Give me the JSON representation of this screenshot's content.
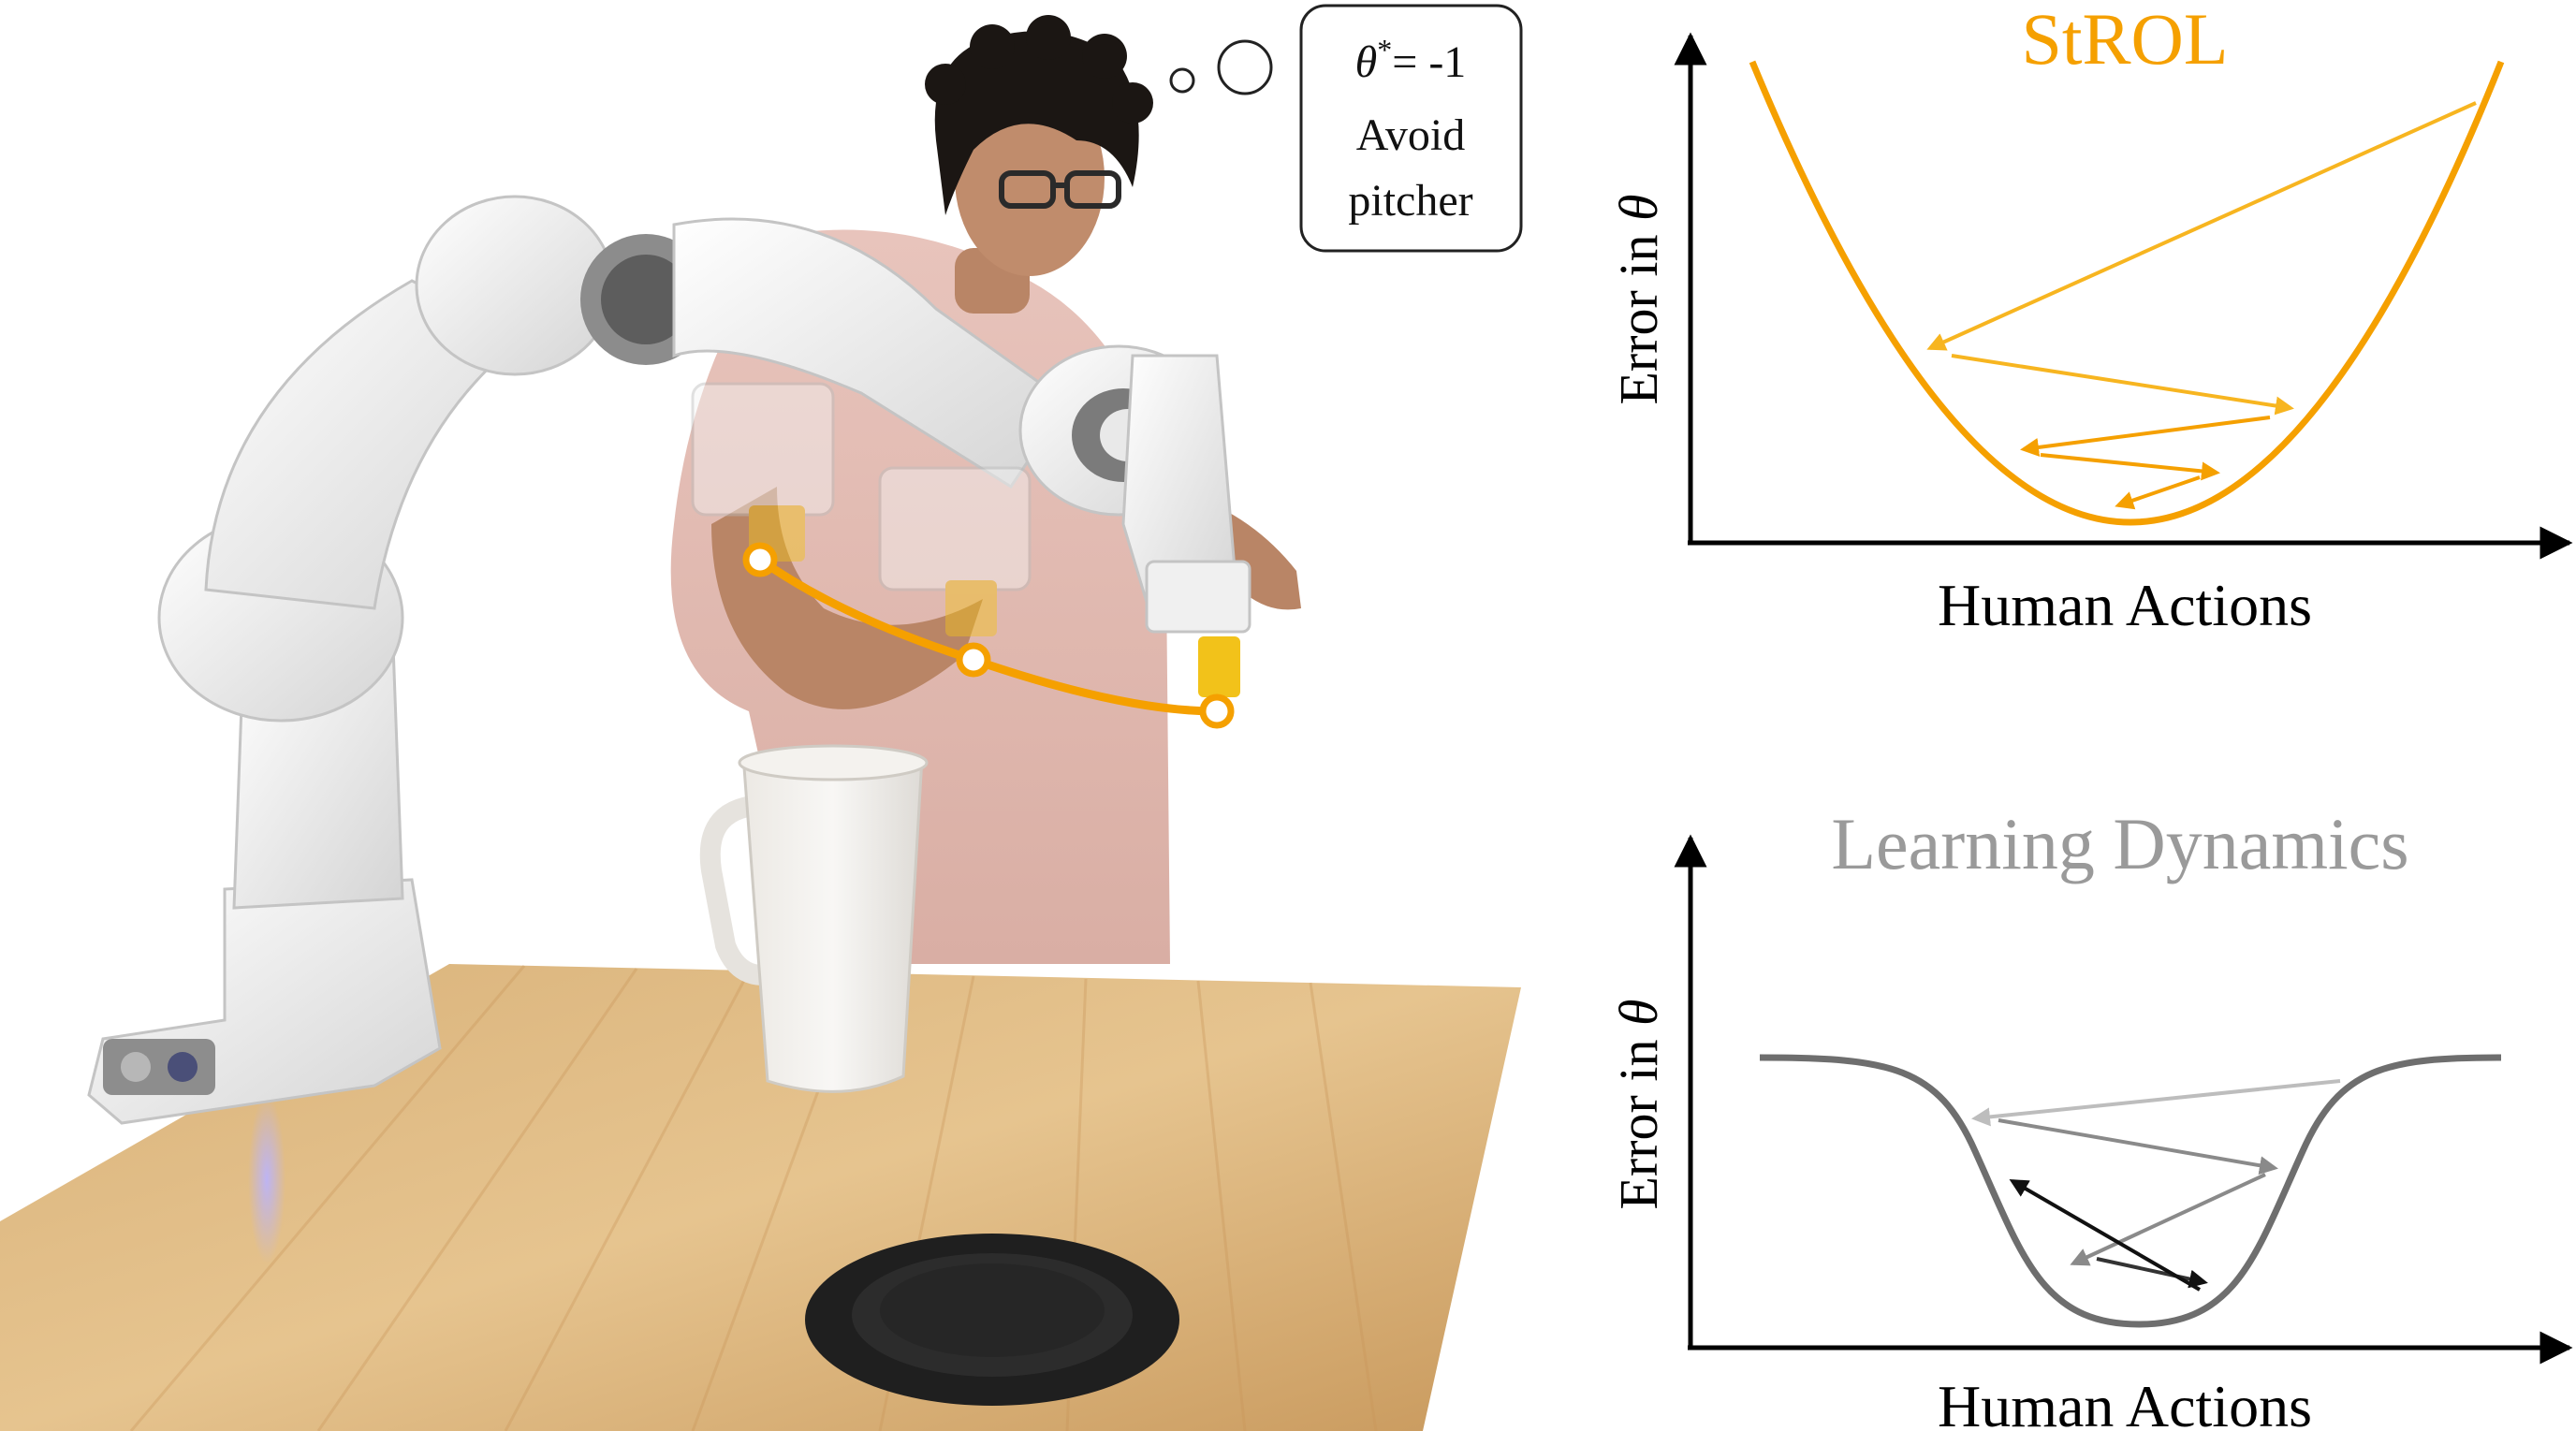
{
  "thought_bubble": {
    "line1_symbol": "θ",
    "line1_sup": "*",
    "line1_value": "= -1",
    "line2": "Avoid",
    "line3": "pitcher"
  },
  "panels": [
    {
      "title": "StROL",
      "ylabel_text": "Error in ",
      "ylabel_symbol": "θ",
      "xlabel": "Human Actions",
      "curve_color": "#f5a000",
      "arrow_color": "#f7b520"
    },
    {
      "title": "Learning Dynamics",
      "ylabel_text": "Error in ",
      "ylabel_symbol": "θ",
      "xlabel": "Human Actions",
      "curve_color": "#6e6e6e",
      "arrow_color": "#333333"
    }
  ],
  "colors": {
    "orange": "#f5a000",
    "gray_title": "#9a9a9a",
    "axis": "#000000"
  }
}
